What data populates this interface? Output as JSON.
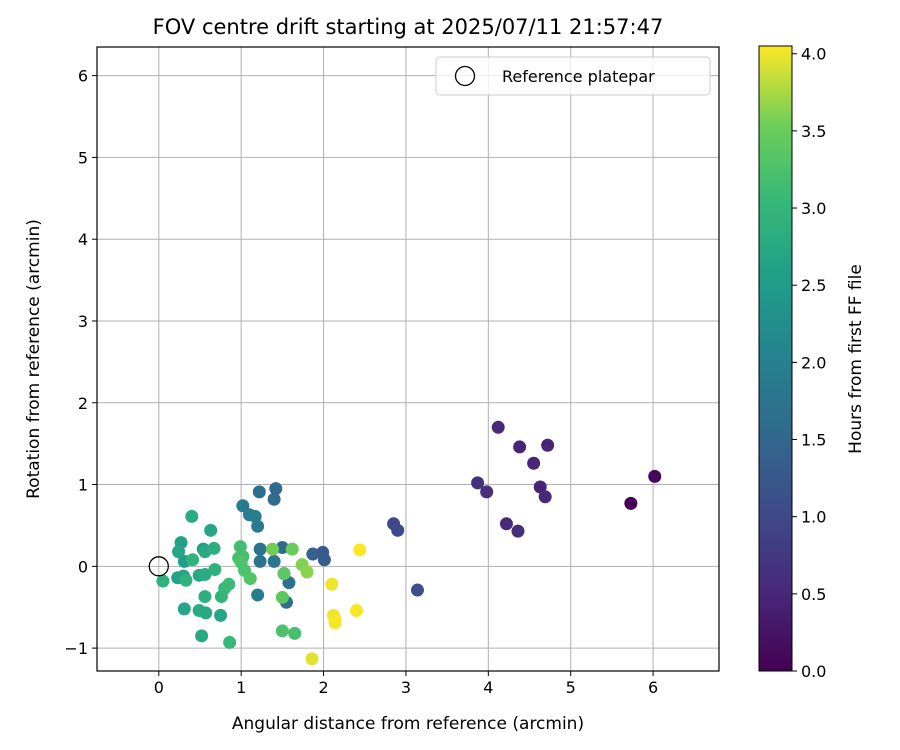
{
  "chart_data": {
    "type": "scatter",
    "title": "FOV centre drift starting at 2025/07/11 21:57:47",
    "xlabel": "Angular distance from reference (arcmin)",
    "ylabel": "Rotation from reference (arcmin)",
    "xlim": [
      -0.75,
      6.8
    ],
    "ylim": [
      -1.28,
      6.35
    ],
    "xticks": [
      "0",
      "1",
      "2",
      "3",
      "4",
      "5",
      "6"
    ],
    "xtick_values": [
      0,
      1,
      2,
      3,
      4,
      5,
      6
    ],
    "yticks": [
      "−1",
      "0",
      "1",
      "2",
      "3",
      "4",
      "5",
      "6"
    ],
    "ytick_values": [
      -1,
      0,
      1,
      2,
      3,
      4,
      5,
      6
    ],
    "grid": true,
    "legend": {
      "label": "Reference platepar",
      "placement": "top-right"
    },
    "reference_point": {
      "x": 0,
      "y": 0
    },
    "colorbar": {
      "label": "Hours from first FF file",
      "colormap": "viridis",
      "range": [
        0,
        4.05
      ],
      "ticks": [
        "0.0",
        "0.5",
        "1.0",
        "1.5",
        "2.0",
        "2.5",
        "3.0",
        "3.5",
        "4.0"
      ],
      "tick_values": [
        0,
        0.5,
        1,
        1.5,
        2,
        2.5,
        3,
        3.5,
        4
      ]
    },
    "points": [
      {
        "x": 5.73,
        "y": 0.77,
        "c": 0.0
      },
      {
        "x": 6.02,
        "y": 1.1,
        "c": 0.08
      },
      {
        "x": 4.72,
        "y": 1.48,
        "c": 0.45
      },
      {
        "x": 4.38,
        "y": 1.46,
        "c": 0.48
      },
      {
        "x": 4.12,
        "y": 1.7,
        "c": 0.55
      },
      {
        "x": 4.55,
        "y": 1.26,
        "c": 0.47
      },
      {
        "x": 4.63,
        "y": 0.97,
        "c": 0.45
      },
      {
        "x": 4.69,
        "y": 0.85,
        "c": 0.5
      },
      {
        "x": 3.87,
        "y": 1.02,
        "c": 0.65
      },
      {
        "x": 3.98,
        "y": 0.91,
        "c": 0.62
      },
      {
        "x": 4.22,
        "y": 0.52,
        "c": 0.55
      },
      {
        "x": 4.36,
        "y": 0.43,
        "c": 0.6
      },
      {
        "x": 2.85,
        "y": 0.52,
        "c": 1.0
      },
      {
        "x": 2.9,
        "y": 0.44,
        "c": 1.02
      },
      {
        "x": 3.14,
        "y": -0.29,
        "c": 1.1
      },
      {
        "x": 1.42,
        "y": 0.95,
        "c": 1.55
      },
      {
        "x": 1.4,
        "y": 0.82,
        "c": 1.6
      },
      {
        "x": 1.22,
        "y": 0.91,
        "c": 1.65
      },
      {
        "x": 1.02,
        "y": 0.74,
        "c": 1.85
      },
      {
        "x": 1.1,
        "y": 0.63,
        "c": 1.9
      },
      {
        "x": 1.17,
        "y": 0.61,
        "c": 1.95
      },
      {
        "x": 1.2,
        "y": 0.49,
        "c": 1.9
      },
      {
        "x": 1.23,
        "y": 0.21,
        "c": 1.75
      },
      {
        "x": 1.23,
        "y": 0.06,
        "c": 1.75
      },
      {
        "x": 1.4,
        "y": 0.06,
        "c": 1.8
      },
      {
        "x": 1.5,
        "y": 0.23,
        "c": 1.6
      },
      {
        "x": 1.52,
        "y": -0.09,
        "c": 1.7
      },
      {
        "x": 1.58,
        "y": -0.2,
        "c": 1.7
      },
      {
        "x": 1.55,
        "y": -0.44,
        "c": 1.65
      },
      {
        "x": 1.2,
        "y": -0.35,
        "c": 1.9
      },
      {
        "x": 1.87,
        "y": 0.15,
        "c": 1.4
      },
      {
        "x": 1.99,
        "y": 0.17,
        "c": 1.3
      },
      {
        "x": 2.01,
        "y": 0.08,
        "c": 1.32
      },
      {
        "x": 0.27,
        "y": 0.29,
        "c": 2.6
      },
      {
        "x": 0.24,
        "y": 0.18,
        "c": 2.7
      },
      {
        "x": 0.31,
        "y": 0.06,
        "c": 2.55
      },
      {
        "x": 0.23,
        "y": -0.14,
        "c": 2.6
      },
      {
        "x": 0.3,
        "y": -0.12,
        "c": 2.65
      },
      {
        "x": 0.33,
        "y": -0.17,
        "c": 2.9
      },
      {
        "x": 0.05,
        "y": -0.18,
        "c": 2.9
      },
      {
        "x": 0.41,
        "y": 0.08,
        "c": 2.95
      },
      {
        "x": 0.4,
        "y": 0.61,
        "c": 2.8
      },
      {
        "x": 0.54,
        "y": 0.21,
        "c": 2.55
      },
      {
        "x": 0.56,
        "y": 0.18,
        "c": 2.75
      },
      {
        "x": 0.63,
        "y": 0.44,
        "c": 2.7
      },
      {
        "x": 0.67,
        "y": 0.22,
        "c": 2.85
      },
      {
        "x": 0.49,
        "y": -0.11,
        "c": 2.7
      },
      {
        "x": 0.56,
        "y": -0.1,
        "c": 2.8
      },
      {
        "x": 0.68,
        "y": -0.04,
        "c": 2.9
      },
      {
        "x": 0.31,
        "y": -0.52,
        "c": 2.7
      },
      {
        "x": 0.49,
        "y": -0.54,
        "c": 2.8
      },
      {
        "x": 0.56,
        "y": -0.37,
        "c": 2.85
      },
      {
        "x": 0.57,
        "y": -0.57,
        "c": 2.75
      },
      {
        "x": 0.75,
        "y": -0.6,
        "c": 2.7
      },
      {
        "x": 0.76,
        "y": -0.37,
        "c": 3.0
      },
      {
        "x": 0.8,
        "y": -0.27,
        "c": 3.05
      },
      {
        "x": 0.85,
        "y": -0.22,
        "c": 3.1
      },
      {
        "x": 0.52,
        "y": -0.85,
        "c": 2.75
      },
      {
        "x": 0.86,
        "y": -0.93,
        "c": 3.05
      },
      {
        "x": 0.99,
        "y": 0.24,
        "c": 3.15
      },
      {
        "x": 0.97,
        "y": 0.1,
        "c": 3.2
      },
      {
        "x": 1.02,
        "y": 0.12,
        "c": 3.2
      },
      {
        "x": 1.0,
        "y": 0.05,
        "c": 3.25
      },
      {
        "x": 1.04,
        "y": -0.05,
        "c": 3.25
      },
      {
        "x": 1.11,
        "y": -0.15,
        "c": 3.3
      },
      {
        "x": 1.38,
        "y": 0.21,
        "c": 3.55
      },
      {
        "x": 1.62,
        "y": 0.21,
        "c": 3.5
      },
      {
        "x": 1.52,
        "y": -0.09,
        "c": 3.4
      },
      {
        "x": 1.5,
        "y": -0.38,
        "c": 3.4
      },
      {
        "x": 1.5,
        "y": -0.79,
        "c": 3.25
      },
      {
        "x": 1.65,
        "y": -0.82,
        "c": 3.2
      },
      {
        "x": 1.74,
        "y": 0.02,
        "c": 3.6
      },
      {
        "x": 1.8,
        "y": -0.07,
        "c": 3.65
      },
      {
        "x": 1.86,
        "y": -1.13,
        "c": 3.95
      },
      {
        "x": 2.1,
        "y": -0.22,
        "c": 4.0
      },
      {
        "x": 2.12,
        "y": -0.6,
        "c": 4.0
      },
      {
        "x": 2.14,
        "y": -0.65,
        "c": 4.02
      },
      {
        "x": 2.14,
        "y": -0.69,
        "c": 4.02
      },
      {
        "x": 2.4,
        "y": -0.54,
        "c": 4.03
      },
      {
        "x": 2.44,
        "y": 0.2,
        "c": 4.05
      }
    ]
  }
}
